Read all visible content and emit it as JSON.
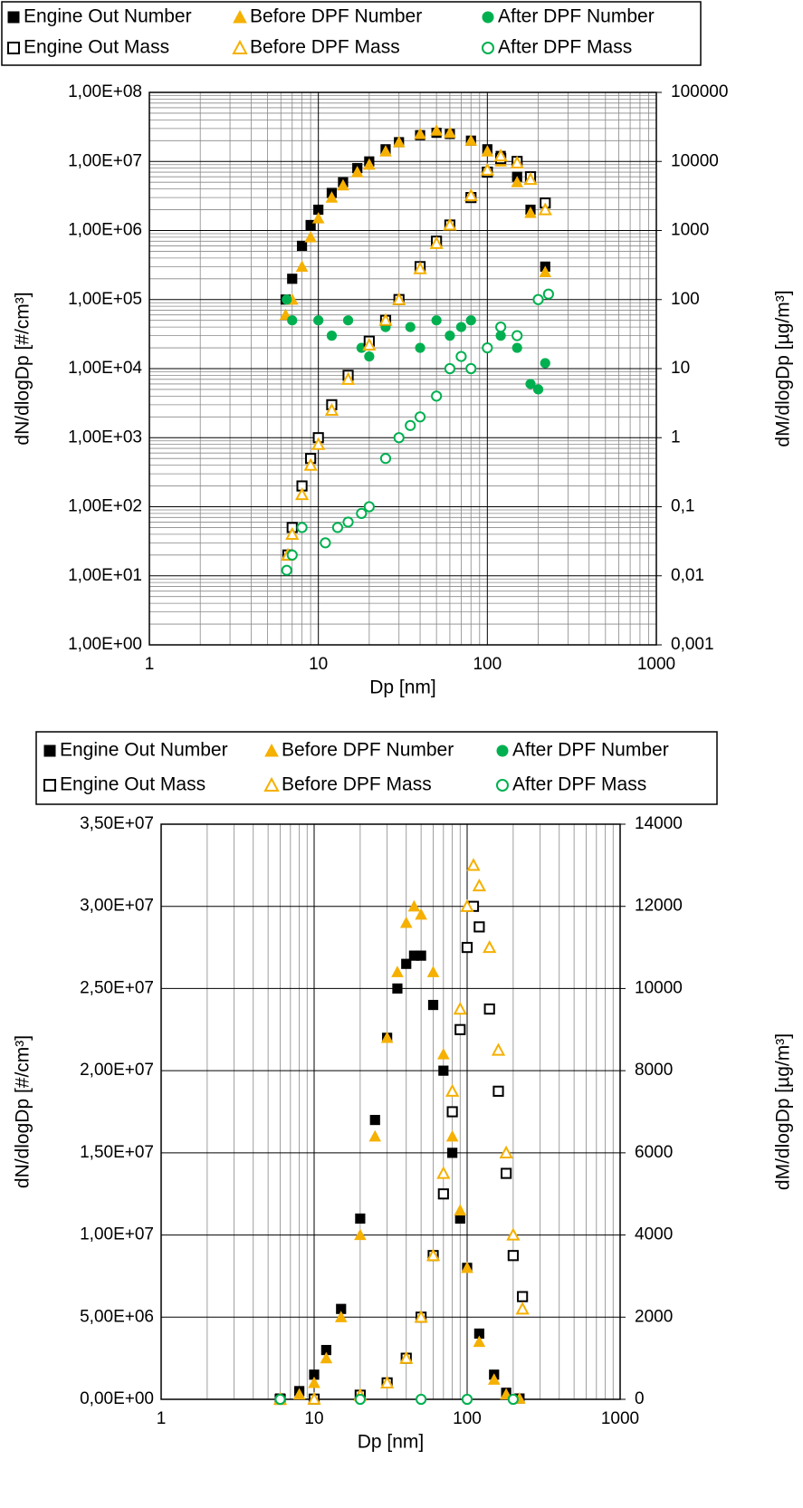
{
  "chart_data": [
    {
      "type": "scatter",
      "x_label": "Dp [nm]",
      "y_label": "dN/dlogDp [#/cm³]",
      "y2_label": "dM/dlogDp [µg/m³]",
      "xscale": "log",
      "yscale": "log",
      "y2scale": "log",
      "grid": true,
      "xlim": [
        1,
        1000
      ],
      "xticks": [
        1,
        10,
        100,
        1000
      ],
      "ylim": [
        1,
        100000000
      ],
      "yticks": [
        {
          "value": 1,
          "label": "1,00E+00"
        },
        {
          "value": 10,
          "label": "1,00E+01"
        },
        {
          "value": 100,
          "label": "1,00E+02"
        },
        {
          "value": 1000,
          "label": "1,00E+03"
        },
        {
          "value": 10000,
          "label": "1,00E+04"
        },
        {
          "value": 100000,
          "label": "1,00E+05"
        },
        {
          "value": 1000000,
          "label": "1,00E+06"
        },
        {
          "value": 10000000,
          "label": "1,00E+07"
        },
        {
          "value": 100000000,
          "label": "1,00E+08"
        }
      ],
      "y2lim": [
        0.001,
        100000
      ],
      "y2ticks": [
        {
          "value": 0.001,
          "label": "0,001"
        },
        {
          "value": 0.01,
          "label": "0,01"
        },
        {
          "value": 0.1,
          "label": "0,1"
        },
        1,
        10,
        100,
        1000,
        10000,
        100000
      ],
      "series": [
        {
          "name": "Engine Out Number",
          "color": "#000000",
          "marker": "square",
          "filled": true,
          "x": [
            6.4,
            7,
            8,
            9,
            10,
            12,
            14,
            17,
            20,
            25,
            30,
            40,
            50,
            60,
            80,
            100,
            120,
            150,
            180,
            220
          ],
          "values": [
            100000,
            200000,
            600000,
            1200000,
            2000000,
            3500000,
            5000000,
            8000000,
            10000000,
            15000000,
            19000000,
            24000000,
            26000000,
            25000000,
            20000000,
            15000000,
            12000000,
            6000000,
            2000000,
            300000
          ]
        },
        {
          "name": "Before DPF Number",
          "color": "#f5b000",
          "marker": "triangle",
          "filled": true,
          "x": [
            6.4,
            7,
            8,
            9,
            10,
            12,
            14,
            17,
            20,
            25,
            30,
            40,
            50,
            60,
            80,
            100,
            120,
            150,
            180,
            220
          ],
          "values": [
            60000,
            100000,
            300000,
            800000,
            1500000,
            3000000,
            4500000,
            7000000,
            9000000,
            14000000,
            19000000,
            25000000,
            28000000,
            26000000,
            20000000,
            14000000,
            10000000,
            5000000,
            1800000,
            250000
          ]
        },
        {
          "name": "After DPF Number",
          "color": "#00b050",
          "marker": "circle",
          "filled": true,
          "x": [
            6.5,
            7,
            10,
            12,
            15,
            18,
            20,
            25,
            30,
            35,
            40,
            50,
            60,
            70,
            80,
            100,
            120,
            150,
            180,
            200,
            220
          ],
          "values": [
            100000,
            50000,
            50000,
            30000,
            50000,
            20000,
            15000,
            40000,
            100000,
            40000,
            20000,
            50000,
            30000,
            40000,
            50000,
            20000,
            30000,
            20000,
            6000,
            5000,
            12000
          ]
        },
        {
          "name": "Engine Out Mass",
          "color": "#000000",
          "marker": "square",
          "filled": false,
          "axis": "y2",
          "x": [
            6.6,
            7,
            8,
            9,
            10,
            12,
            15,
            20,
            25,
            30,
            40,
            50,
            60,
            80,
            100,
            120,
            150,
            180,
            220
          ],
          "values": [
            0.02,
            0.05,
            0.2,
            0.5,
            1,
            3,
            8,
            25,
            50,
            100,
            300,
            700,
            1200,
            3000,
            7000,
            11000,
            10000,
            6000,
            2500
          ]
        },
        {
          "name": "Before DPF Mass",
          "color": "#f5b000",
          "marker": "triangle",
          "filled": false,
          "axis": "y2",
          "x": [
            6.6,
            7,
            8,
            9,
            10,
            12,
            15,
            20,
            25,
            30,
            40,
            50,
            60,
            80,
            100,
            120,
            150,
            180,
            220
          ],
          "values": [
            0.02,
            0.04,
            0.15,
            0.4,
            0.8,
            2.5,
            7,
            22,
            50,
            100,
            280,
            650,
            1200,
            3200,
            7500,
            12000,
            9500,
            5500,
            2000
          ]
        },
        {
          "name": "After DPF Mass",
          "color": "#00b050",
          "marker": "circle",
          "filled": false,
          "axis": "y2",
          "x": [
            6.5,
            7,
            8,
            11,
            13,
            15,
            18,
            20,
            25,
            30,
            35,
            40,
            50,
            60,
            70,
            80,
            100,
            120,
            150,
            200,
            230
          ],
          "values": [
            0.012,
            0.02,
            0.05,
            0.03,
            0.05,
            0.06,
            0.08,
            0.1,
            0.5,
            1,
            1.5,
            2,
            4,
            10,
            15,
            10,
            20,
            40,
            30,
            100,
            120
          ]
        }
      ]
    },
    {
      "type": "scatter",
      "x_label": "Dp [nm]",
      "y_label": "dN/dlogDp [#/cm³]",
      "y2_label": "dM/dlogDp [µg/m³]",
      "xscale": "log",
      "yscale": "linear",
      "y2scale": "linear",
      "grid": true,
      "xlim": [
        1,
        1000
      ],
      "xticks": [
        1,
        10,
        100,
        1000
      ],
      "ylim": [
        0,
        35000000
      ],
      "yticks": [
        {
          "value": 0,
          "label": "0,00E+00"
        },
        {
          "value": 5000000,
          "label": "5,00E+06"
        },
        {
          "value": 10000000,
          "label": "1,00E+07"
        },
        {
          "value": 15000000,
          "label": "1,50E+07"
        },
        {
          "value": 20000000,
          "label": "2,00E+07"
        },
        {
          "value": 25000000,
          "label": "2,50E+07"
        },
        {
          "value": 30000000,
          "label": "3,00E+07"
        },
        {
          "value": 35000000,
          "label": "3,50E+07"
        }
      ],
      "y2lim": [
        0,
        14000
      ],
      "y2ticks": [
        0,
        2000,
        4000,
        6000,
        8000,
        10000,
        12000,
        14000
      ],
      "series": [
        {
          "name": "Engine Out Number",
          "color": "#000000",
          "marker": "square",
          "filled": true,
          "x": [
            6,
            8,
            10,
            12,
            15,
            20,
            25,
            30,
            35,
            40,
            45,
            50,
            60,
            70,
            80,
            90,
            100,
            120,
            150,
            180,
            220
          ],
          "values": [
            50000,
            500000,
            1500000,
            3000000,
            5500000,
            11000000,
            17000000,
            22000000,
            25000000,
            26500000,
            27000000,
            27000000,
            24000000,
            20000000,
            15000000,
            11000000,
            8000000,
            4000000,
            1500000,
            400000,
            50000
          ]
        },
        {
          "name": "Before DPF Number",
          "color": "#f5b000",
          "marker": "triangle",
          "filled": true,
          "x": [
            6,
            8,
            10,
            12,
            15,
            20,
            25,
            30,
            35,
            40,
            45,
            50,
            60,
            70,
            80,
            90,
            100,
            120,
            150,
            180,
            220
          ],
          "values": [
            30000,
            300000,
            1000000,
            2500000,
            5000000,
            10000000,
            16000000,
            22000000,
            26000000,
            29000000,
            30000000,
            29500000,
            26000000,
            21000000,
            16000000,
            11500000,
            8000000,
            3500000,
            1200000,
            300000,
            50000
          ]
        },
        {
          "name": "After DPF Number",
          "color": "#00b050",
          "marker": "circle",
          "filled": true,
          "x": [
            6,
            10,
            20,
            50,
            100,
            200
          ],
          "values": [
            0,
            0,
            0,
            0,
            0,
            0
          ]
        },
        {
          "name": "Engine Out Mass",
          "color": "#000000",
          "marker": "square",
          "filled": false,
          "axis": "y2",
          "x": [
            6,
            10,
            20,
            30,
            40,
            50,
            60,
            70,
            80,
            90,
            100,
            110,
            120,
            140,
            160,
            180,
            200,
            230
          ],
          "values": [
            0,
            5,
            100,
            400,
            1000,
            2000,
            3500,
            5000,
            7000,
            9000,
            11000,
            12000,
            11500,
            9500,
            7500,
            5500,
            3500,
            2500
          ]
        },
        {
          "name": "Before DPF Mass",
          "color": "#f5b000",
          "marker": "triangle",
          "filled": false,
          "axis": "y2",
          "x": [
            6,
            10,
            20,
            30,
            40,
            50,
            60,
            70,
            80,
            90,
            100,
            110,
            120,
            140,
            160,
            180,
            200,
            230
          ],
          "values": [
            0,
            5,
            100,
            400,
            1000,
            2000,
            3500,
            5500,
            7500,
            9500,
            12000,
            13000,
            12500,
            11000,
            8500,
            6000,
            4000,
            2200
          ]
        },
        {
          "name": "After DPF Mass",
          "color": "#00b050",
          "marker": "circle",
          "filled": false,
          "axis": "y2",
          "x": [
            6,
            20,
            50,
            100,
            200
          ],
          "values": [
            0,
            0,
            0,
            0,
            0
          ]
        }
      ]
    }
  ]
}
